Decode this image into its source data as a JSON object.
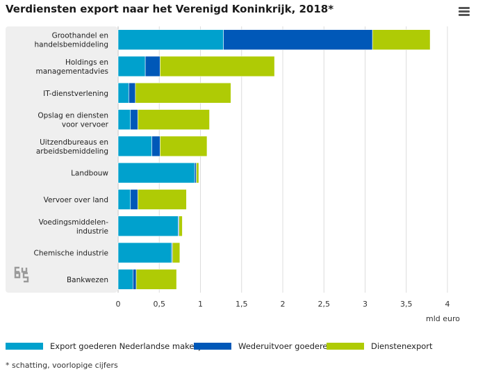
{
  "title": "Verdiensten export naar het Verenigd Koninkrijk, 2018*",
  "unit_label": "mld euro",
  "footnote": "* schatting, voorlopige cijfers",
  "menu_icon": "hamburger-menu-icon",
  "logo_icon": "cbs-logo-icon",
  "colors": {
    "export_nl": "#00a1cd",
    "wederuitvoer": "#0058b8",
    "diensten": "#afcb05",
    "panel": "#efefef",
    "grid": "#dcdcdc"
  },
  "chart_data": {
    "type": "bar",
    "orientation": "horizontal",
    "stacked": true,
    "title": "Verdiensten export naar het Verenigd Koninkrijk, 2018*",
    "xlabel": "mld euro",
    "ylabel": "",
    "xlim": [
      0,
      4
    ],
    "xticks": [
      0,
      0.5,
      1,
      1.5,
      2,
      2.5,
      3,
      3.5,
      4
    ],
    "xtick_labels": [
      "0",
      "0,5",
      "1",
      "1,5",
      "2",
      "2,5",
      "3",
      "3,5",
      "4"
    ],
    "grid": true,
    "legend_position": "bottom",
    "categories": [
      [
        "Groothandel en",
        "handelsbemiddeling"
      ],
      [
        "Holdings en",
        "managementadvies"
      ],
      [
        "IT-dienstverlening"
      ],
      [
        "Opslag en diensten",
        "voor vervoer"
      ],
      [
        "Uitzendbureaus en",
        "arbeidsbemiddeling"
      ],
      [
        "Landbouw"
      ],
      [
        "Vervoer over land"
      ],
      [
        "Voedingsmiddelen-",
        "industrie"
      ],
      [
        "Chemische industrie"
      ],
      [
        "Bankwezen"
      ]
    ],
    "series": [
      {
        "name": "Export goederen Nederlandse makelij",
        "color": "#00a1cd",
        "values": [
          1.28,
          0.33,
          0.13,
          0.15,
          0.41,
          0.93,
          0.15,
          0.73,
          0.65,
          0.18
        ]
      },
      {
        "name": "Wederuitvoer goederen",
        "color": "#0058b8",
        "values": [
          1.81,
          0.18,
          0.08,
          0.09,
          0.1,
          0.02,
          0.09,
          0.01,
          0.01,
          0.04
        ]
      },
      {
        "name": "Dienstenexport",
        "color": "#afcb05",
        "values": [
          0.7,
          1.39,
          1.16,
          0.87,
          0.57,
          0.03,
          0.59,
          0.04,
          0.09,
          0.49
        ]
      }
    ]
  }
}
